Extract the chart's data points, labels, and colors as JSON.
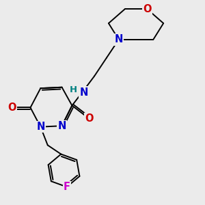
{
  "bg_color": "#ebebeb",
  "bond_color": "#000000",
  "bond_width": 1.4,
  "atom_colors": {
    "N": "#0000cc",
    "O": "#cc0000",
    "F": "#cc00cc",
    "H": "#008080",
    "C": "#000000"
  },
  "font_size": 10.5
}
